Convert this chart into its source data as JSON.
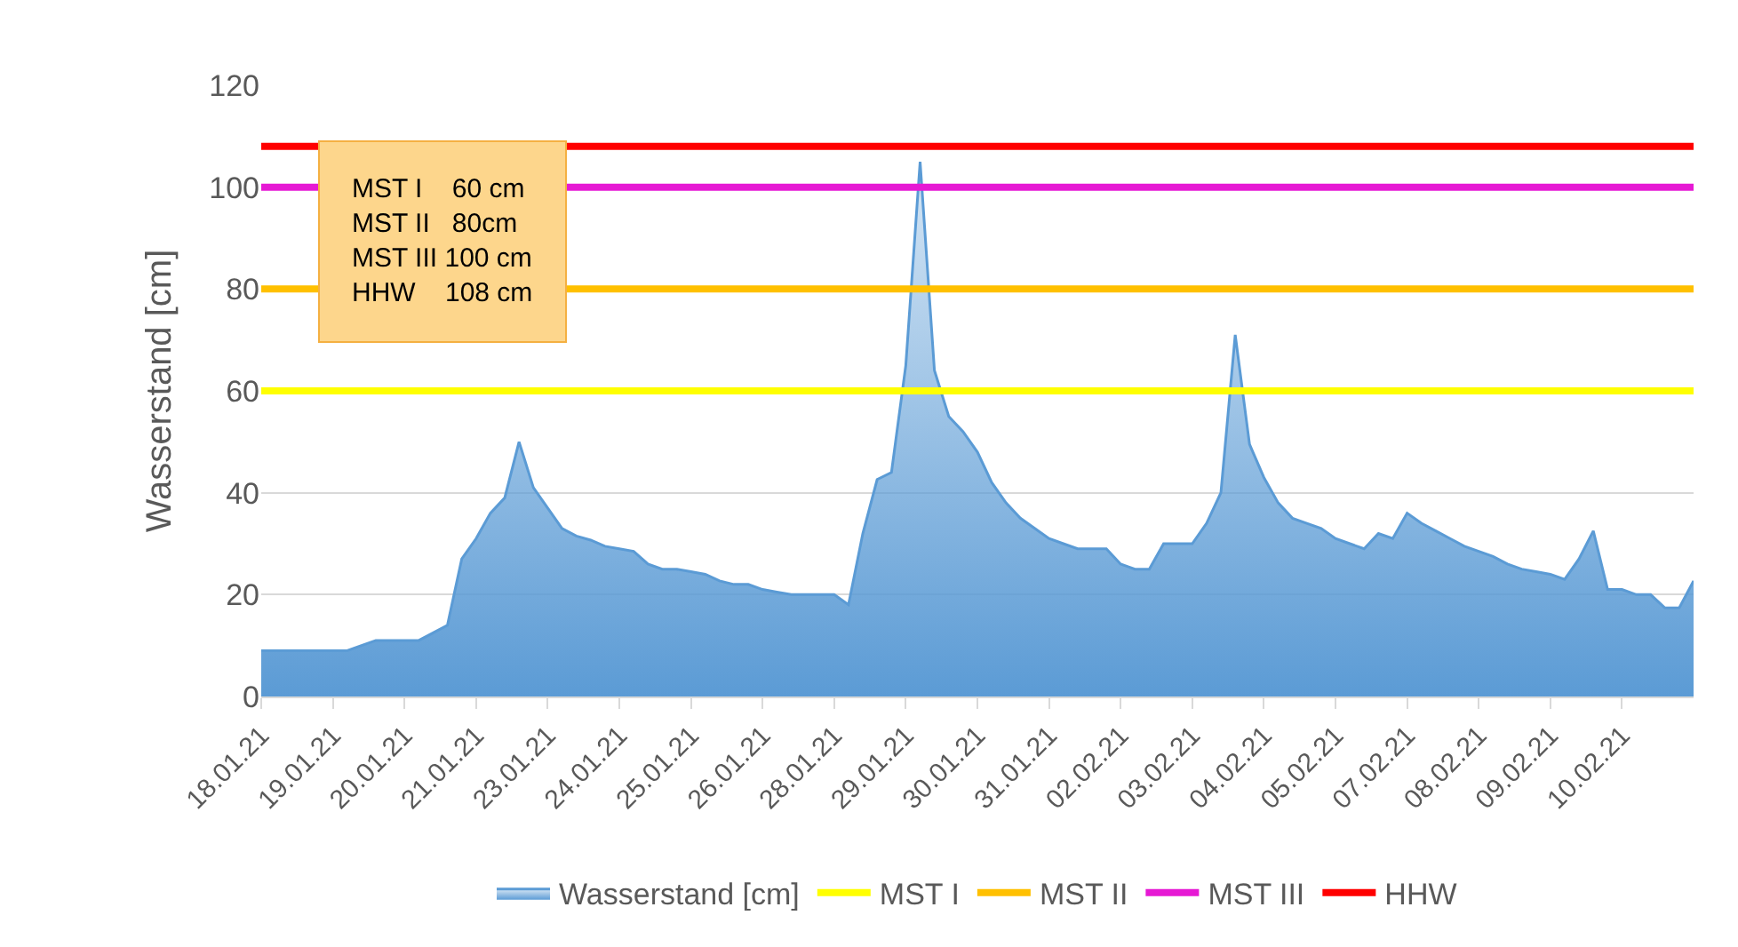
{
  "chart_data": {
    "type": "area",
    "categories": [
      "18.01.21",
      null,
      null,
      null,
      null,
      "19.01.21",
      null,
      null,
      null,
      null,
      "20.01.21",
      null,
      null,
      null,
      null,
      "21.01.21",
      null,
      null,
      null,
      null,
      "23.01.21",
      null,
      null,
      null,
      null,
      "24.01.21",
      null,
      null,
      null,
      null,
      "25.01.21",
      null,
      null,
      null,
      null,
      "26.01.21",
      null,
      null,
      null,
      null,
      "28.01.21",
      null,
      null,
      null,
      null,
      "29.01.21",
      null,
      null,
      null,
      null,
      "30.01.21",
      null,
      null,
      null,
      null,
      "31.01.21",
      null,
      null,
      null,
      null,
      "02.02.21",
      null,
      null,
      null,
      null,
      "03.02.21",
      null,
      null,
      null,
      null,
      "04.02.21",
      null,
      null,
      null,
      null,
      "05.02.21",
      null,
      null,
      null,
      null,
      "07.02.21",
      null,
      null,
      null,
      null,
      "08.02.21",
      null,
      null,
      null,
      null,
      "09.02.21",
      null,
      null,
      null,
      null,
      "10.02.21",
      null,
      null,
      null,
      null,
      null
    ],
    "series": [
      {
        "name": "Wasserstand [cm]",
        "color": "#5b9bd5",
        "values": [
          9,
          9,
          9,
          9,
          9,
          9,
          9,
          10,
          11,
          11,
          11,
          11,
          12.5,
          14,
          27,
          31,
          36,
          39,
          50,
          41,
          37,
          33,
          31.5,
          30.7,
          29.5,
          29,
          28.5,
          26,
          25,
          25,
          24.5,
          24,
          22.7,
          22,
          22,
          21,
          20.5,
          20,
          20,
          20,
          20,
          18,
          32,
          42.6,
          44,
          65,
          105,
          64,
          55,
          52,
          48,
          42,
          38,
          35,
          33,
          31,
          30,
          29,
          29,
          29,
          26,
          25,
          25,
          30,
          30,
          30,
          34,
          40,
          71,
          49.5,
          43,
          38,
          35,
          34,
          33,
          31,
          30,
          29,
          32,
          31,
          36,
          34,
          32.5,
          31,
          29.5,
          28.5,
          27.5,
          26,
          25,
          24.5,
          24,
          23,
          27,
          32.5,
          21,
          21,
          20,
          20,
          17.4,
          17.4,
          22.7
        ]
      }
    ],
    "ylabel": "Wasserstand [cm]",
    "ylim": [
      0,
      120
    ],
    "yticks": [
      0,
      20,
      40,
      60,
      80,
      100,
      120
    ],
    "grid": "y",
    "legend": "bottom",
    "ref_lines": [
      {
        "axis": "y",
        "value": 60,
        "label": "MST I",
        "color": "#ffff00"
      },
      {
        "axis": "y",
        "value": 80,
        "label": "MST II",
        "color": "#ffc000"
      },
      {
        "axis": "y",
        "value": 100,
        "label": "MST III",
        "color": "#e619d4"
      },
      {
        "axis": "y",
        "value": 108,
        "label": "HHW",
        "color": "#ff0000"
      }
    ],
    "annotations": [
      "MST I    60 cm\nMST II   80cm\nMST III 100 cm\nHHW    108 cm"
    ]
  }
}
